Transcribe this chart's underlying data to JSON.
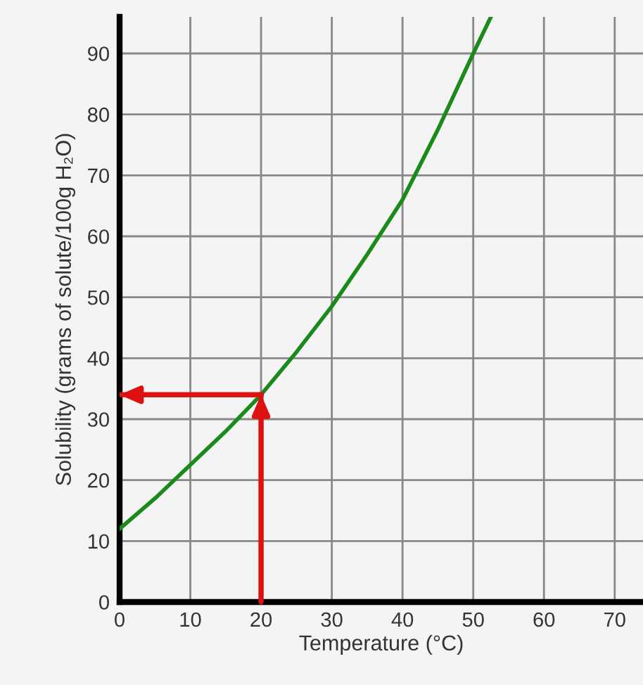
{
  "chart_data": {
    "type": "line",
    "xlabel": "Temperature (°C)",
    "ylabel": "Solubility (grams of solute/100g H₂O)",
    "x": [
      0,
      5,
      10,
      15,
      20,
      25,
      30,
      35,
      40,
      45,
      50,
      52.5
    ],
    "series": [
      {
        "color": "#1a8a1a",
        "values": [
          12,
          17,
          22.5,
          28,
          34,
          41,
          48.5,
          57,
          66,
          77.5,
          90,
          96
        ]
      }
    ],
    "xlim": [
      0,
      74
    ],
    "ylim": [
      0,
      96
    ],
    "xticks": [
      0,
      10,
      20,
      30,
      40,
      50,
      60,
      70
    ],
    "yticks": [
      0,
      10,
      20,
      30,
      40,
      50,
      60,
      70,
      80,
      90
    ],
    "grid": true,
    "marker": "none",
    "line_style": "solid",
    "ref_lines": [
      {
        "axis": "x",
        "value": 20,
        "color": "#dd1111"
      },
      {
        "axis": "y",
        "value": 34,
        "color": "#dd1111"
      }
    ]
  }
}
